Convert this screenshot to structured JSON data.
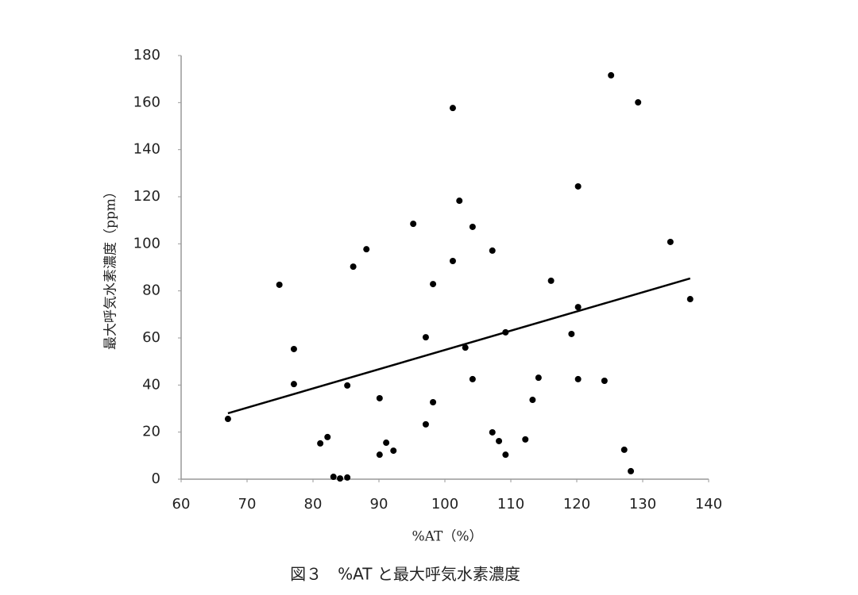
{
  "chart_data": {
    "type": "scatter",
    "caption": "図３　%AT と最大呼気水素濃度",
    "x_label": "%AT（%）",
    "y_label": "最大呼気水素濃度（ppm）",
    "xlim": [
      60,
      140
    ],
    "xticks": [
      60,
      70,
      80,
      90,
      100,
      110,
      120,
      130,
      140
    ],
    "ylim": [
      0,
      180
    ],
    "yticks": [
      0,
      20,
      40,
      60,
      80,
      100,
      120,
      140,
      160,
      180
    ],
    "color": "#000000",
    "x": [
      67.1,
      74.9,
      77.1,
      77.1,
      81.1,
      82.2,
      83.1,
      84.1,
      85.2,
      85.2,
      86.1,
      88.1,
      90.1,
      90.1,
      91.1,
      92.2,
      95.2,
      97.1,
      97.1,
      98.2,
      98.2,
      101.2,
      101.2,
      102.2,
      103.1,
      104.2,
      104.2,
      107.2,
      107.2,
      108.2,
      109.2,
      109.2,
      112.2,
      113.3,
      114.2,
      116.1,
      119.2,
      120.2,
      120.2,
      120.2,
      124.2,
      125.2,
      127.2,
      128.2,
      129.3,
      134.2,
      137.2
    ],
    "values": [
      25.6,
      82.6,
      55.3,
      40.4,
      15.2,
      17.9,
      1.0,
      0.3,
      0.7,
      39.8,
      90.3,
      97.7,
      34.4,
      10.4,
      15.5,
      12.1,
      108.5,
      23.3,
      60.3,
      82.9,
      32.7,
      157.7,
      92.7,
      118.3,
      55.9,
      107.2,
      42.5,
      97.1,
      19.9,
      16.2,
      62.4,
      10.4,
      16.9,
      33.7,
      43.1,
      84.3,
      61.7,
      124.4,
      73.1,
      42.5,
      41.8,
      171.6,
      12.5,
      3.4,
      160.1,
      100.8,
      76.5
    ],
    "trendline": {
      "x": [
        67.1,
        137.2
      ],
      "values": [
        28.0,
        85.3
      ]
    }
  }
}
